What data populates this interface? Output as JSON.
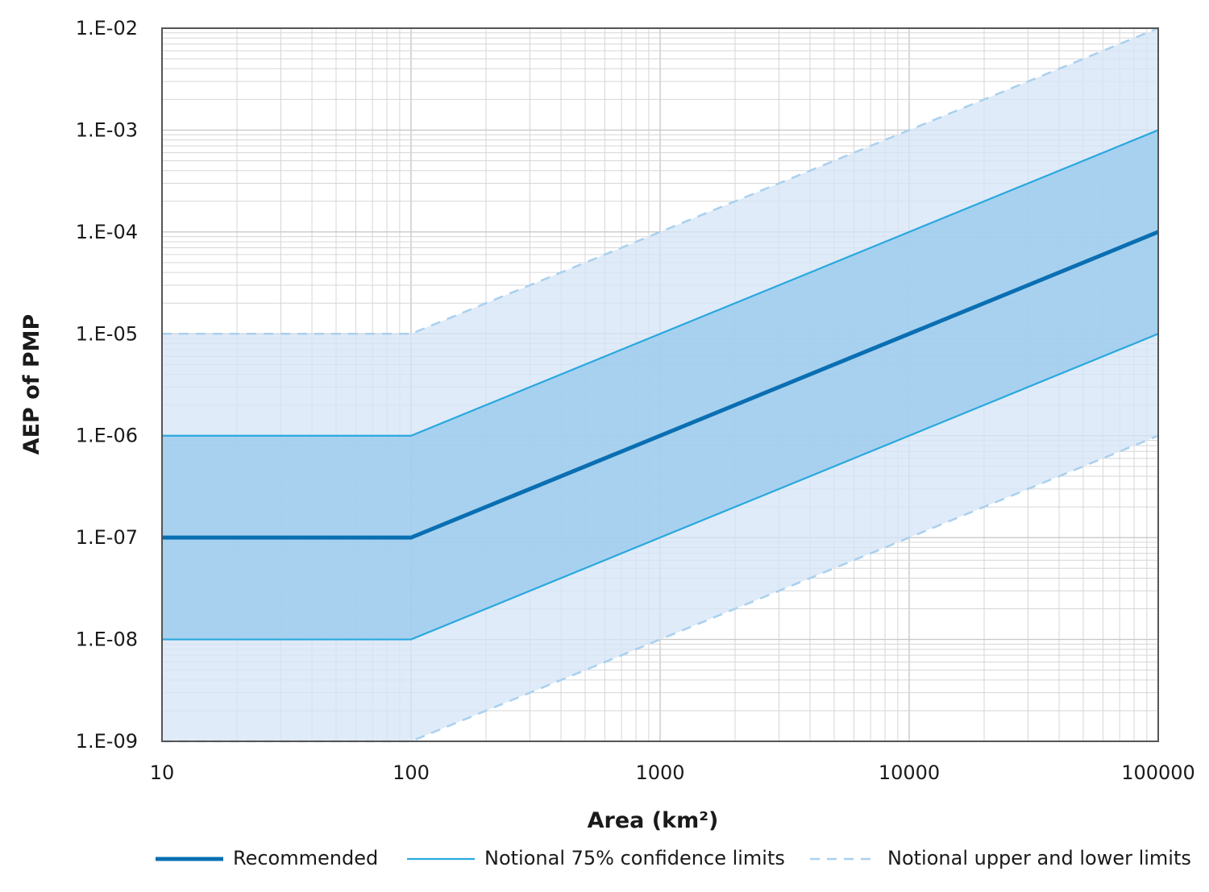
{
  "chart_data": {
    "type": "line",
    "title": "",
    "xlabel": "Area (km²)",
    "ylabel": "AEP of PMP",
    "x_scale": "log",
    "y_scale": "log",
    "xlim": [
      10,
      100000
    ],
    "ylim": [
      1e-09,
      0.01
    ],
    "grid": true,
    "legend_position": "bottom",
    "x_ticks": [
      {
        "value": 10,
        "label": "10"
      },
      {
        "value": 100,
        "label": "100"
      },
      {
        "value": 1000,
        "label": "1000"
      },
      {
        "value": 10000,
        "label": "10000"
      },
      {
        "value": 100000,
        "label": "100000"
      }
    ],
    "y_ticks": [
      {
        "value": 0.01,
        "label": "1.E-02"
      },
      {
        "value": 0.001,
        "label": "1.E-03"
      },
      {
        "value": 0.0001,
        "label": "1.E-04"
      },
      {
        "value": 1e-05,
        "label": "1.E-05"
      },
      {
        "value": 1e-06,
        "label": "1.E-06"
      },
      {
        "value": 1e-07,
        "label": "1.E-07"
      },
      {
        "value": 1e-08,
        "label": "1.E-08"
      },
      {
        "value": 1e-09,
        "label": "1.E-09"
      }
    ],
    "bands": [
      {
        "between": [
          "upper_limit",
          "lower_limit"
        ],
        "color": "#d6e6f6"
      },
      {
        "between": [
          "upper_75",
          "lower_75"
        ],
        "color": "#98c9ec"
      }
    ],
    "series": [
      {
        "key": "upper_limit",
        "name": "Notional upper and lower limits",
        "style": "dashed",
        "color": "#a9d0ef",
        "x": [
          10,
          100,
          100000
        ],
        "y": [
          1e-05,
          1e-05,
          0.01
        ]
      },
      {
        "key": "lower_limit",
        "name": "Notional upper and lower limits",
        "style": "dashed",
        "color": "#a9d0ef",
        "x": [
          10,
          100,
          100000
        ],
        "y": [
          1e-09,
          1e-09,
          1e-06
        ]
      },
      {
        "key": "upper_75",
        "name": "Notional 75% confidence limits",
        "style": "thin",
        "color": "#29a8de",
        "x": [
          10,
          100,
          100000
        ],
        "y": [
          1e-06,
          1e-06,
          0.001
        ]
      },
      {
        "key": "lower_75",
        "name": "Notional 75% confidence limits",
        "style": "thin",
        "color": "#29a8de",
        "x": [
          10,
          100,
          100000
        ],
        "y": [
          1e-08,
          1e-08,
          1e-05
        ]
      },
      {
        "key": "recommended",
        "name": "Recommended",
        "style": "thick",
        "color": "#0a6fb2",
        "x": [
          10,
          100,
          100000
        ],
        "y": [
          1e-07,
          1e-07,
          0.0001
        ]
      }
    ],
    "legend": [
      {
        "label": "Recommended",
        "style": "thick",
        "color": "#0a6fb2"
      },
      {
        "label": "Notional 75% confidence limits",
        "style": "thin",
        "color": "#29a8de"
      },
      {
        "label": "Notional upper and lower limits",
        "style": "dashed",
        "color": "#a9d0ef"
      }
    ]
  }
}
